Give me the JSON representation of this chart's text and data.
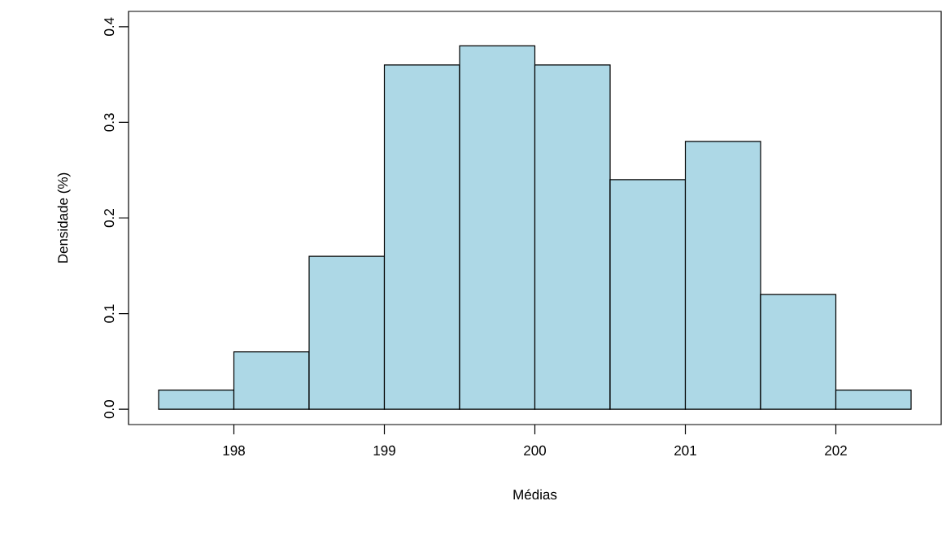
{
  "chart_data": {
    "type": "histogram",
    "xlabel": "Médias",
    "ylabel": "Densidade (%)",
    "bins": [
      197.5,
      198,
      198.5,
      199,
      199.5,
      200,
      200.5,
      201,
      201.5,
      202,
      202.5
    ],
    "values": [
      0.02,
      0.06,
      0.16,
      0.36,
      0.38,
      0.36,
      0.24,
      0.28,
      0.12,
      0.02
    ],
    "color": "#add8e6",
    "xlim": [
      197.3,
      202.7
    ],
    "ylim": [
      -0.016,
      0.416
    ],
    "xticks": [
      198,
      199,
      200,
      201,
      202
    ],
    "yticks": [
      {
        "value": 0,
        "label": "0.0"
      },
      0.1,
      0.2,
      0.3,
      0.4
    ]
  }
}
